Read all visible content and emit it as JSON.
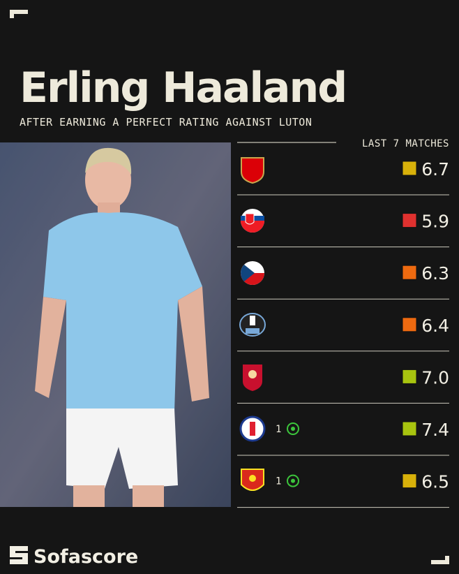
{
  "header": {
    "title": "Erling Haaland",
    "subtitle": "AFTER EARNING A PERFECT RATING AGAINST LUTON"
  },
  "matches": {
    "label": "LAST 7 MATCHES",
    "rows": [
      {
        "rating": "6.7",
        "color": "#d8b10a"
      },
      {
        "rating": "5.9",
        "color": "#e0312f"
      },
      {
        "rating": "6.3",
        "color": "#ee6a10"
      },
      {
        "rating": "6.4",
        "color": "#ee6a10"
      },
      {
        "rating": "7.0",
        "color": "#a8c40f"
      },
      {
        "goals": "1",
        "rating": "7.4",
        "color": "#a8c40f"
      },
      {
        "goals": "1",
        "rating": "6.5",
        "color": "#d8b10a"
      }
    ]
  },
  "brand": "Sofascore"
}
